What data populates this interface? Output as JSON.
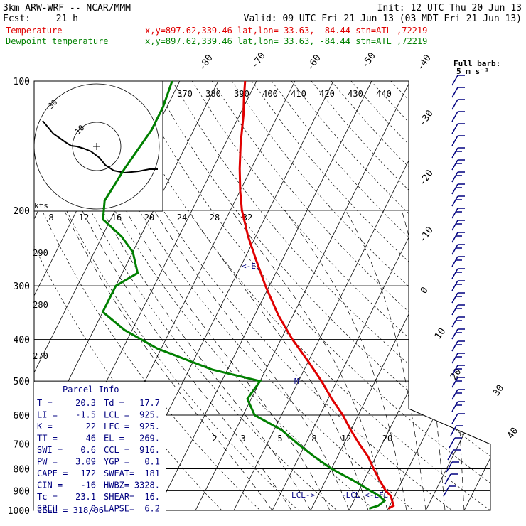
{
  "header": {
    "model": "3km ARW-WRF -- NCAR/MMM",
    "init": "Init: 12 UTC Thu 20 Jun 13",
    "fcst_label": "Fcst:",
    "fcst_value": "21 h",
    "valid": "Valid: 09 UTC Fri 21 Jun 13 (03 MDT Fri 21 Jun 13)"
  },
  "legend": {
    "temperature": {
      "label": "Temperature",
      "color": "#e00000"
    },
    "dewpoint": {
      "label": "Dewpoint temperature",
      "color": "#008000"
    },
    "location": "x,y=897.62,339.46   lat,lon= 33.63, -84.44   stn=ATL ,72219"
  },
  "parcel_info": {
    "title": "Parcel Info",
    "rows": [
      [
        "T  =",
        "20.3",
        "Td =",
        "17.7"
      ],
      [
        "LI =",
        "-1.5",
        "LCL =",
        "925."
      ],
      [
        "K  =",
        "22",
        "LFC =",
        "925."
      ],
      [
        "TT =",
        "46",
        "EL  =",
        "269."
      ],
      [
        "SWI =",
        "0.6",
        "CCL =",
        "916."
      ],
      [
        "PW =",
        "3.09",
        "YGP =",
        "0.1"
      ],
      [
        "CAPE =",
        "172",
        "SWEAT=",
        "181"
      ],
      [
        "CIN =",
        "-16",
        "HWBZ=",
        "3328."
      ],
      [
        "Tc =",
        "23.1",
        "SHEAR=",
        "16."
      ],
      [
        "SREH =",
        "0",
        "LAPSE=",
        "6.2"
      ]
    ],
    "cell": "CELL = 318/06"
  },
  "barb_legend": {
    "title": "Full barb:",
    "value": "5 m s⁻¹"
  },
  "hodograph": {
    "kts_label": "kts",
    "ring_labels": [
      "30",
      "10"
    ],
    "speed_ticks": [
      "8",
      "12",
      "16",
      "20",
      "24",
      "28",
      "32"
    ]
  },
  "markers": {
    "el": "<-EL",
    "lcl": "-LCL <-LFC",
    "lcl_left": "LCL->",
    "ccl": "M"
  },
  "chart_data": {
    "type": "line",
    "pressure_levels": [
      100,
      200,
      300,
      400,
      500,
      600,
      700,
      800,
      900,
      1000
    ],
    "isotherm_labels": [
      "-80",
      "-70",
      "-60",
      "-50",
      "-40",
      "-30",
      "-20",
      "-10",
      "0",
      "10",
      "20",
      "30",
      "40"
    ],
    "theta_labels": [
      "370",
      "380",
      "390",
      "400",
      "410",
      "420",
      "430",
      "440"
    ],
    "theta_side_labels": [
      "290",
      "280",
      "270"
    ],
    "mixing_ratio_labels": [
      "2",
      "3",
      "5",
      "8",
      "12",
      "20"
    ],
    "series": [
      {
        "name": "Temperature",
        "color": "#e00000",
        "pressure": [
          100,
          110,
          120,
          140,
          160,
          180,
          200,
          230,
          260,
          300,
          350,
          400,
          450,
          500,
          550,
          600,
          650,
          700,
          750,
          800,
          850,
          900,
          925,
          950,
          975,
          990
        ],
        "temp": [
          -73,
          -71,
          -69,
          -66,
          -63,
          -60,
          -57,
          -52,
          -47,
          -41,
          -34,
          -27,
          -20,
          -14,
          -9,
          -4,
          0,
          4,
          8,
          11,
          14,
          17,
          19,
          20,
          21,
          20
        ]
      },
      {
        "name": "Dewpoint temperature",
        "color": "#008000",
        "pressure": [
          100,
          115,
          130,
          160,
          190,
          210,
          230,
          250,
          280,
          300,
          320,
          345,
          380,
          420,
          470,
          500,
          550,
          600,
          650,
          700,
          750,
          800,
          850,
          900,
          925,
          950,
          975,
          990
        ],
        "temp": [
          -92,
          -91,
          -91,
          -93,
          -94,
          -92,
          -85,
          -80,
          -76,
          -80,
          -80,
          -80,
          -72,
          -61,
          -44,
          -30,
          -31,
          -27,
          -18,
          -12,
          -6,
          0,
          7,
          13,
          16,
          18,
          17,
          15
        ]
      }
    ],
    "wind_barbs_levels": 35
  }
}
